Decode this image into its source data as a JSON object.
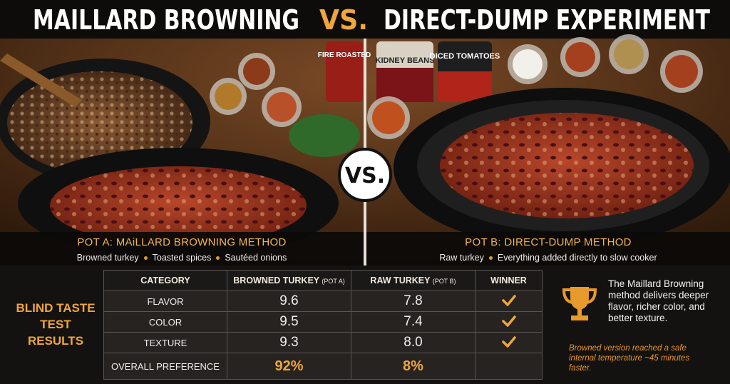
{
  "header": {
    "title_left": "MAILLARD BROWNING",
    "title_vs": "VS.",
    "title_right": "DIRECT-DUMP EXPERIMENT"
  },
  "photos": {
    "vs_badge": "VS.",
    "can_left": "FIRE ROASTED",
    "can_beans": "KIDNEY BEANS",
    "can_tomatoes": "DICED TOMATOES"
  },
  "pot_a": {
    "title": "POT A: MAiLLARD BROWNING METHOD",
    "features": [
      "Browned turkey",
      "Toasted spices",
      "Sautéed onions"
    ]
  },
  "pot_b": {
    "title": "POT B: DIRECT-DUMP METHOD",
    "features": [
      "Raw turkey",
      "Everything added directly to slow cooker"
    ]
  },
  "results": {
    "label": "BLIND TASTE TEST RESULTS",
    "columns": [
      {
        "name": "CATEGORY"
      },
      {
        "name": "BROWNED TURKEY",
        "note": "(POT A)"
      },
      {
        "name": "RAW TURKEY",
        "note": "(POT B)"
      },
      {
        "name": "WINNER"
      }
    ],
    "rows": [
      {
        "category": "FLAVOR",
        "pot_a": "9.6",
        "pot_b": "7.8"
      },
      {
        "category": "COLOR",
        "pot_a": "9.5",
        "pot_b": "7.4"
      },
      {
        "category": "TEXTURE",
        "pot_a": "9.3",
        "pot_b": "8.0"
      },
      {
        "category": "OVERALL PREFERENCE",
        "pot_a": "92%",
        "pot_b": "8%"
      }
    ]
  },
  "summary": {
    "text": "The Maillard Browning method delivers deeper flavor, richer color, and better texture.",
    "note": "Browned version reached a safe internal temperature ~45 minutes faster."
  }
}
